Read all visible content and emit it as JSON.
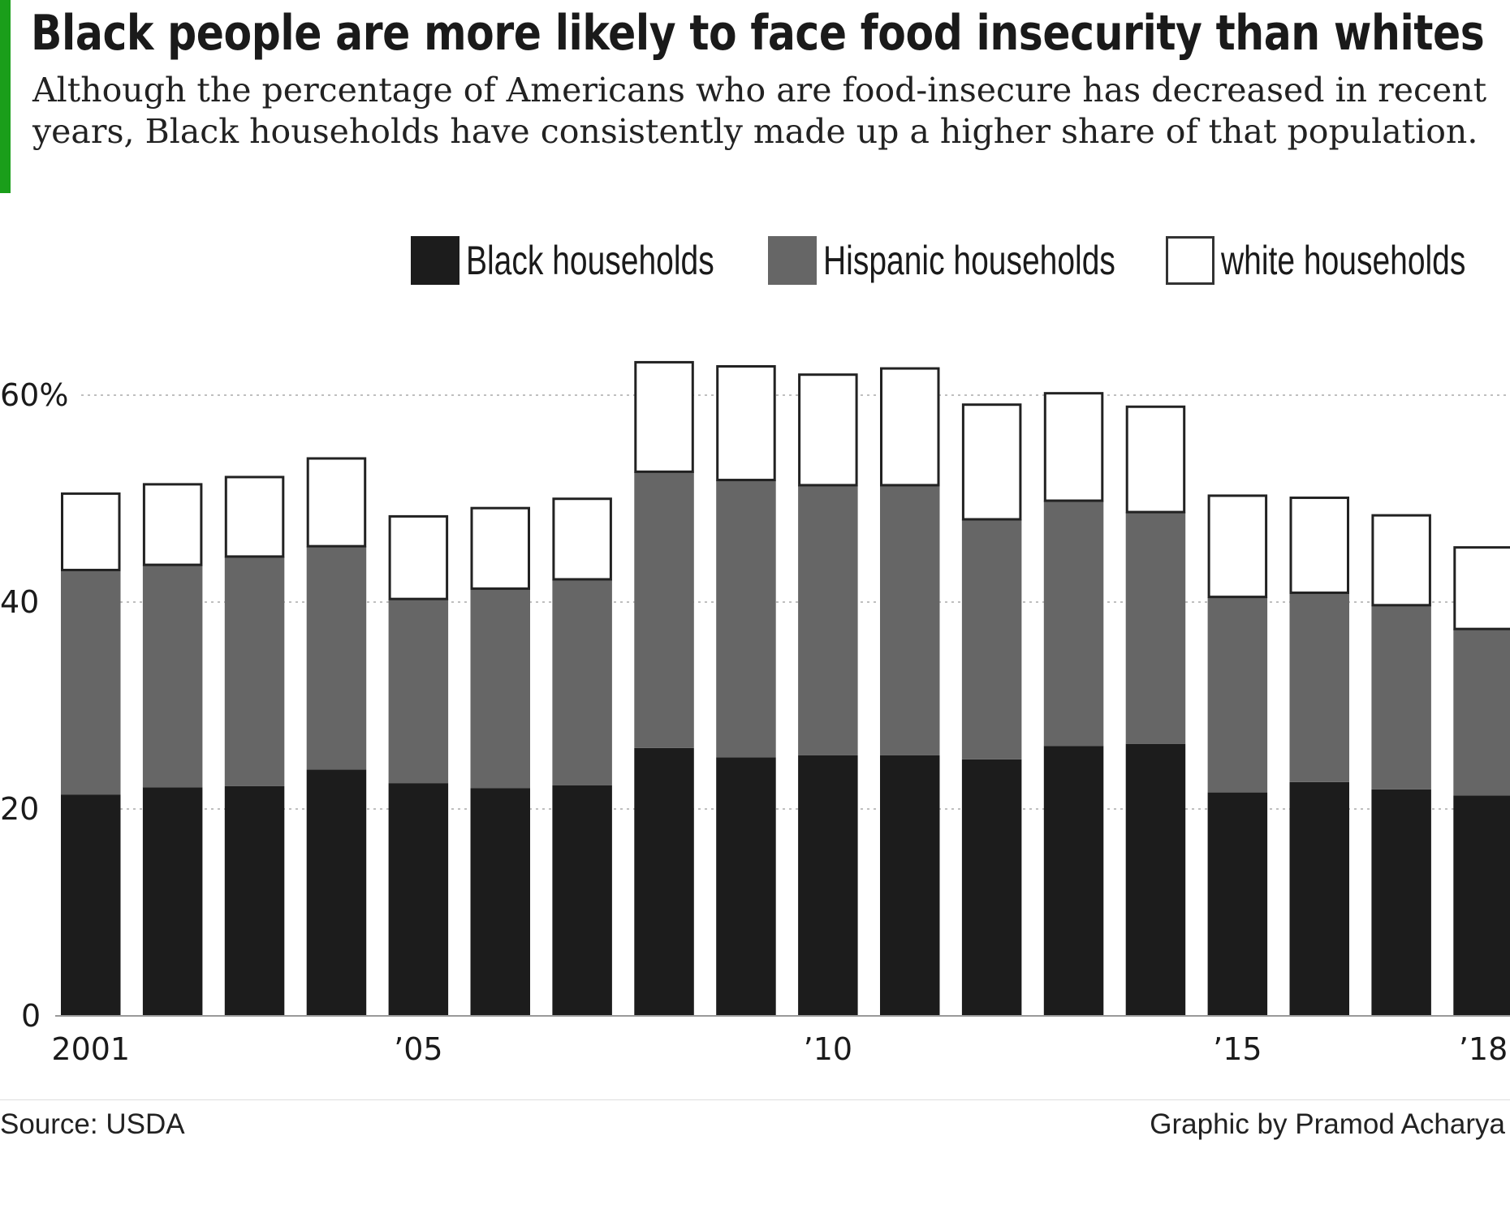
{
  "header": {
    "title": "Black people are more likely to face food insecurity than whites",
    "subtitle": "Although the percentage of Americans who are food-insecure has decreased in recent years, Black households have consistently made up a higher share of that population.",
    "accent_color": "#1a9e1a"
  },
  "footer": {
    "source": "Source: USDA",
    "credit": "Graphic by Pramod Acharya"
  },
  "chart_data": {
    "type": "bar",
    "stacked": true,
    "title": "Black people are more likely to face food insecurity than whites",
    "xlabel": "",
    "ylabel": "",
    "ylim": [
      0,
      65
    ],
    "grid": true,
    "legend_placement": "top-right",
    "categories": [
      "2001",
      "2002",
      "2003",
      "2004",
      "2005",
      "2006",
      "2007",
      "2008",
      "2009",
      "2010",
      "2011",
      "2012",
      "2013",
      "2014",
      "2015",
      "2016",
      "2017",
      "2018"
    ],
    "x_tick_labels": [
      {
        "category": "2001",
        "label": "2001"
      },
      {
        "category": "2005",
        "label": "’05"
      },
      {
        "category": "2010",
        "label": "’10"
      },
      {
        "category": "2015",
        "label": "’15"
      },
      {
        "category": "2018",
        "label": "’18"
      }
    ],
    "y_ticks": [
      {
        "value": 0,
        "label": "0"
      },
      {
        "value": 20,
        "label": "20"
      },
      {
        "value": 40,
        "label": "40"
      },
      {
        "value": 60,
        "label": "60%"
      }
    ],
    "series": [
      {
        "name": "Black households",
        "color": "#1c1c1c",
        "values": [
          21.4,
          22.1,
          22.2,
          23.8,
          22.5,
          22.0,
          22.3,
          25.9,
          25.0,
          25.2,
          25.2,
          24.8,
          26.1,
          26.3,
          21.6,
          22.6,
          21.9,
          21.3
        ]
      },
      {
        "name": "Hispanic households",
        "color": "#666666",
        "values": [
          21.7,
          21.5,
          22.2,
          21.6,
          17.8,
          19.3,
          19.9,
          26.7,
          26.8,
          26.1,
          26.1,
          23.2,
          23.7,
          22.4,
          18.9,
          18.3,
          17.8,
          16.1
        ]
      },
      {
        "name": "white households",
        "color": "#ffffff",
        "values": [
          7.5,
          7.9,
          7.8,
          8.6,
          8.1,
          7.9,
          7.9,
          10.7,
          11.1,
          10.8,
          11.4,
          11.2,
          10.5,
          10.3,
          9.9,
          9.3,
          8.8,
          8.0
        ]
      }
    ]
  }
}
